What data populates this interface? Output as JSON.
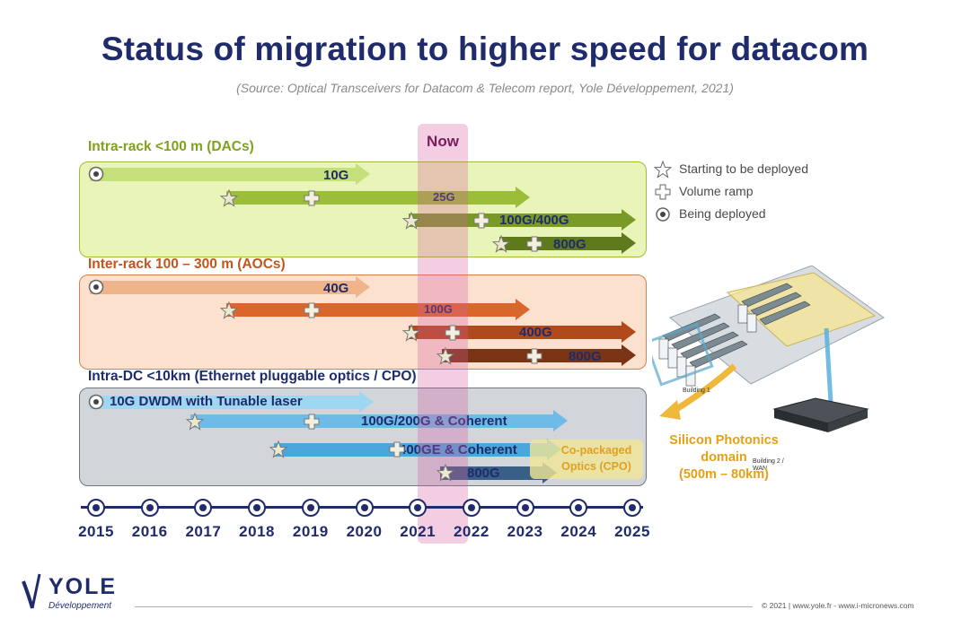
{
  "title": "Status of migration to higher speed for datacom",
  "subtitle": "(Source: Optical Transceivers for Datacom & Telecom report, Yole Développement, 2021)",
  "now_label": "Now",
  "sections": {
    "intra_rack": "Intra-rack <100 m (DACs)",
    "inter_rack": "Inter-rack 100 – 300 m (AOCs)",
    "intra_dc": "Intra-DC <10km (Ethernet pluggable optics / CPO)"
  },
  "arrows": {
    "a10g": "10G",
    "a25g": "25G",
    "a100g400g": "100G/400G",
    "a800g_dac": "800G",
    "a40g": "40G",
    "a100g": "100G",
    "a400g": "400G",
    "a800g_aoc": "800G",
    "dwdm": "10G DWDM with Tunable laser",
    "coh100": "100G/200G & Coherent",
    "coh400": "400GE & Coherent",
    "a800g_dc": "800G",
    "cpo": "Co-packaged Optics (CPO)"
  },
  "legend": {
    "star": "Starting to be deployed",
    "cross": "Volume ramp",
    "circle": "Being deployed"
  },
  "years": [
    "2015",
    "2016",
    "2017",
    "2018",
    "2019",
    "2020",
    "2021",
    "2022",
    "2023",
    "2024",
    "2025"
  ],
  "silicon_photonics": {
    "label_line1": "Silicon Photonics",
    "label_line2": "domain",
    "label_line3": "(500m – 80km)",
    "building1": "Building 1",
    "building2": "Building 2 / WAN"
  },
  "logo": {
    "name": "YOLE",
    "sub": "Développement"
  },
  "footer": "© 2021 | www.yole.fr - www.i-micronews.com",
  "colors": {
    "dac_light": "#c5e07a",
    "dac_mid": "#9bbd3a",
    "dac_dark": "#5e7a1c",
    "aoc_light": "#f0b48a",
    "aoc_mid": "#d9672c",
    "aoc_dark": "#7a3414",
    "dc_light": "#9fd6f2",
    "dc_mid": "#4aa6db",
    "dc_dark": "#3a5f86",
    "navy": "#1f2b6b"
  }
}
